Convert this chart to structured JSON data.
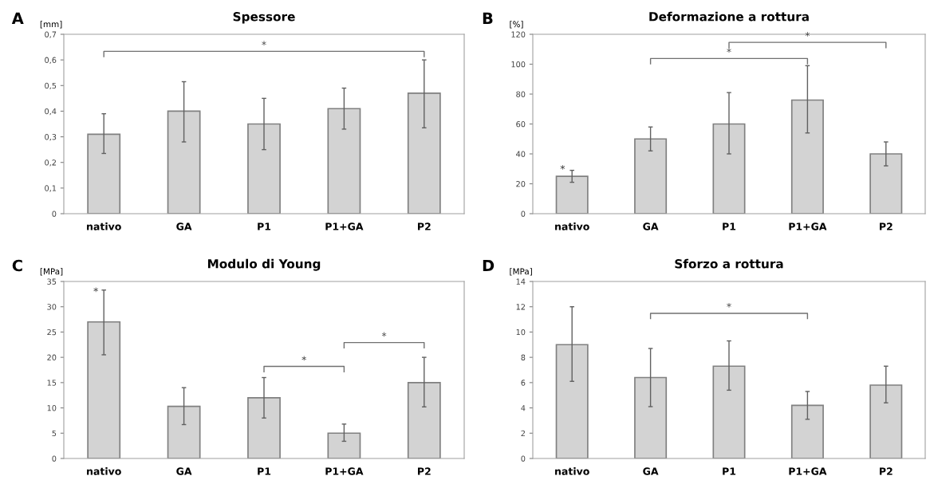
{
  "chart_data": [
    {
      "type": "bar",
      "title": "Spessore",
      "ylabel": "[mm]",
      "categories": [
        "nativo",
        "GA",
        "P1",
        "P1+GA",
        "P2"
      ],
      "color": "#d3d3d3",
      "values": [
        0.31,
        0.4,
        0.35,
        0.41,
        0.47
      ],
      "errors": [
        [
          0.235,
          0.39
        ],
        [
          0.28,
          0.515
        ],
        [
          0.25,
          0.45
        ],
        [
          0.33,
          0.49
        ],
        [
          0.335,
          0.6
        ]
      ],
      "ylim": [
        0,
        0.7
      ],
      "yticks": [
        0,
        {
          "value": 0.1,
          "label": "0,1"
        },
        {
          "value": 0.2,
          "label": "0,2"
        },
        {
          "value": 0.3,
          "label": "0,3"
        },
        {
          "value": 0.4,
          "label": "0,4"
        },
        {
          "value": 0.5,
          "label": "0,5"
        },
        {
          "value": 0.6,
          "label": "0,6"
        },
        {
          "value": 0.7,
          "label": "0,7"
        }
      ],
      "grid": false,
      "annotations": [
        "A",
        "*"
      ]
    },
    {
      "type": "bar",
      "title": "Deformazione a rottura",
      "ylabel": "[%]",
      "categories": [
        "nativo",
        "GA",
        "P1",
        "P1+GA",
        "P2"
      ],
      "color": "#d3d3d3",
      "values": [
        25,
        50,
        60,
        76,
        40
      ],
      "errors": [
        [
          21,
          29
        ],
        [
          42,
          58
        ],
        [
          40,
          81
        ],
        [
          54,
          99
        ],
        [
          32,
          48
        ]
      ],
      "ylim": [
        0,
        120
      ],
      "yticks": [
        0,
        20,
        40,
        60,
        80,
        100,
        120
      ],
      "grid": false,
      "annotations": [
        "B",
        "*",
        "*",
        "*"
      ]
    },
    {
      "type": "bar",
      "title": "Modulo di Young",
      "ylabel": "[MPa]",
      "categories": [
        "nativo",
        "GA",
        "P1",
        "P1+GA",
        "P2"
      ],
      "color": "#d3d3d3",
      "values": [
        27,
        10.3,
        12,
        5,
        15
      ],
      "errors": [
        [
          20.5,
          33.3
        ],
        [
          6.7,
          14
        ],
        [
          8,
          16
        ],
        [
          3.4,
          6.8
        ],
        [
          10.2,
          20
        ]
      ],
      "ylim": [
        0,
        35
      ],
      "yticks": [
        0,
        5,
        10,
        15,
        20,
        25,
        30,
        35
      ],
      "grid": false,
      "annotations": [
        "C",
        "*",
        "*",
        "*"
      ]
    },
    {
      "type": "bar",
      "title": "Sforzo a rottura",
      "ylabel": "[MPa]",
      "categories": [
        "nativo",
        "GA",
        "P1",
        "P1+GA",
        "P2"
      ],
      "color": "#d3d3d3",
      "values": [
        9,
        6.4,
        7.3,
        4.2,
        5.8
      ],
      "errors": [
        [
          6.1,
          12
        ],
        [
          4.1,
          8.7
        ],
        [
          5.4,
          9.3
        ],
        [
          3.1,
          5.3
        ],
        [
          4.4,
          7.3
        ]
      ],
      "ylim": [
        0,
        14
      ],
      "yticks": [
        0,
        2,
        4,
        6,
        8,
        10,
        12,
        14
      ],
      "grid": false,
      "annotations": [
        "D",
        "*"
      ]
    }
  ]
}
